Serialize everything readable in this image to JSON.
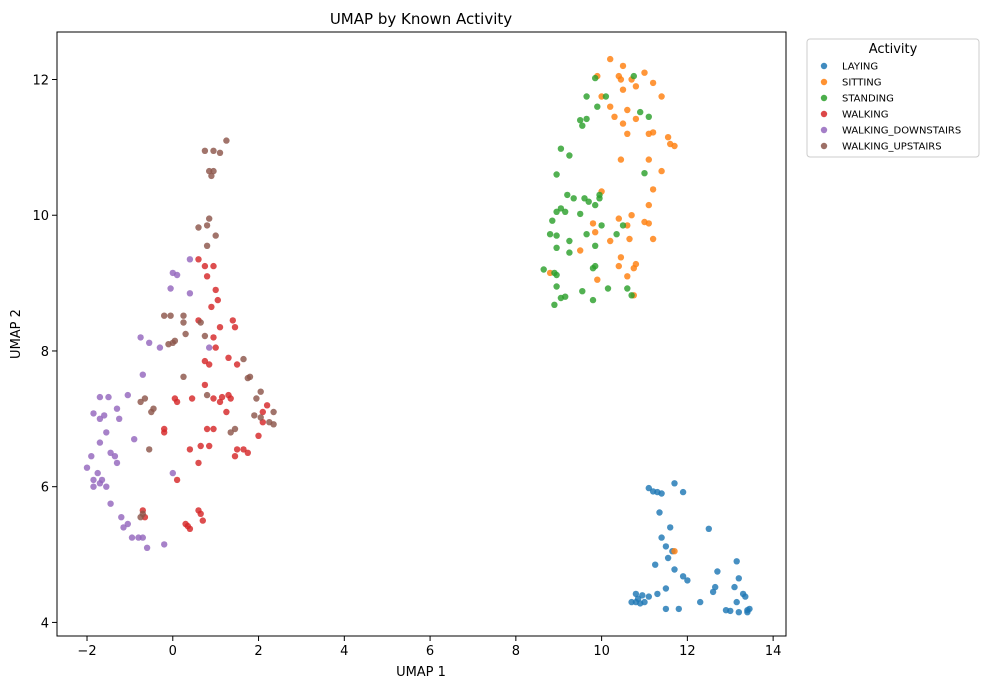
{
  "chart_data": {
    "type": "scatter",
    "title": "UMAP by Known Activity",
    "xlabel": "UMAP 1",
    "ylabel": "UMAP 2",
    "xlim": [
      -2.7,
      14.3
    ],
    "ylim": [
      3.8,
      12.7
    ],
    "xticks": [
      -2,
      0,
      2,
      4,
      6,
      8,
      10,
      12,
      14
    ],
    "yticks": [
      4,
      6,
      8,
      10,
      12
    ],
    "legend": {
      "title": "Activity",
      "placement": "outside-right-top"
    },
    "series": [
      {
        "name": "LAYING",
        "color": "#1f77b4",
        "points": [
          [
            11.1,
            5.98
          ],
          [
            11.2,
            5.93
          ],
          [
            11.3,
            5.92
          ],
          [
            11.4,
            5.9
          ],
          [
            11.7,
            6.05
          ],
          [
            11.9,
            5.92
          ],
          [
            11.35,
            5.62
          ],
          [
            11.4,
            5.25
          ],
          [
            11.6,
            5.4
          ],
          [
            11.5,
            5.12
          ],
          [
            11.65,
            5.05
          ],
          [
            11.55,
            4.95
          ],
          [
            11.25,
            4.85
          ],
          [
            11.7,
            4.78
          ],
          [
            11.9,
            4.68
          ],
          [
            12.0,
            4.62
          ],
          [
            11.5,
            4.5
          ],
          [
            11.3,
            4.42
          ],
          [
            11.1,
            4.38
          ],
          [
            10.8,
            4.42
          ],
          [
            10.85,
            4.35
          ],
          [
            10.95,
            4.4
          ],
          [
            10.7,
            4.3
          ],
          [
            10.8,
            4.3
          ],
          [
            10.9,
            4.28
          ],
          [
            11.0,
            4.3
          ],
          [
            11.5,
            4.2
          ],
          [
            11.8,
            4.2
          ],
          [
            12.3,
            4.3
          ],
          [
            12.5,
            5.38
          ],
          [
            12.7,
            4.75
          ],
          [
            12.65,
            4.52
          ],
          [
            12.6,
            4.45
          ],
          [
            13.15,
            4.9
          ],
          [
            13.2,
            4.65
          ],
          [
            13.1,
            4.52
          ],
          [
            13.3,
            4.42
          ],
          [
            13.35,
            4.38
          ],
          [
            13.15,
            4.3
          ],
          [
            12.9,
            4.18
          ],
          [
            13.0,
            4.17
          ],
          [
            13.2,
            4.15
          ],
          [
            13.4,
            4.15
          ],
          [
            13.45,
            4.2
          ],
          [
            13.4,
            4.18
          ]
        ]
      },
      {
        "name": "SITTING",
        "color": "#ff7f0e",
        "points": [
          [
            10.2,
            12.3
          ],
          [
            10.5,
            12.2
          ],
          [
            9.9,
            12.05
          ],
          [
            10.4,
            12.05
          ],
          [
            10.45,
            12.0
          ],
          [
            10.7,
            12.0
          ],
          [
            11.0,
            12.1
          ],
          [
            11.2,
            11.95
          ],
          [
            11.4,
            11.75
          ],
          [
            10.8,
            11.9
          ],
          [
            10.5,
            11.85
          ],
          [
            10.0,
            11.75
          ],
          [
            10.2,
            11.6
          ],
          [
            10.6,
            11.55
          ],
          [
            10.3,
            11.45
          ],
          [
            10.8,
            11.42
          ],
          [
            10.5,
            11.35
          ],
          [
            10.6,
            11.2
          ],
          [
            11.1,
            11.2
          ],
          [
            11.2,
            11.22
          ],
          [
            11.55,
            11.15
          ],
          [
            11.6,
            11.05
          ],
          [
            11.7,
            11.02
          ],
          [
            10.45,
            10.82
          ],
          [
            11.1,
            10.82
          ],
          [
            11.4,
            10.65
          ],
          [
            11.2,
            10.38
          ],
          [
            10.0,
            10.35
          ],
          [
            11.1,
            10.15
          ],
          [
            10.7,
            10.0
          ],
          [
            10.4,
            9.95
          ],
          [
            11.0,
            9.9
          ],
          [
            11.1,
            9.88
          ],
          [
            9.8,
            9.88
          ],
          [
            9.85,
            9.75
          ],
          [
            10.6,
            9.85
          ],
          [
            10.65,
            9.65
          ],
          [
            11.2,
            9.65
          ],
          [
            10.2,
            9.62
          ],
          [
            9.5,
            9.48
          ],
          [
            10.45,
            9.38
          ],
          [
            10.4,
            9.25
          ],
          [
            10.8,
            9.28
          ],
          [
            10.75,
            9.22
          ],
          [
            10.6,
            9.1
          ],
          [
            9.9,
            9.05
          ],
          [
            8.8,
            9.15
          ],
          [
            10.75,
            8.82
          ],
          [
            11.7,
            5.05
          ]
        ]
      },
      {
        "name": "STANDING",
        "color": "#2ca02c",
        "points": [
          [
            9.85,
            12.02
          ],
          [
            10.75,
            12.05
          ],
          [
            9.65,
            11.75
          ],
          [
            10.1,
            11.75
          ],
          [
            9.9,
            11.6
          ],
          [
            9.65,
            11.42
          ],
          [
            9.5,
            11.4
          ],
          [
            9.55,
            11.32
          ],
          [
            10.9,
            11.52
          ],
          [
            11.1,
            11.45
          ],
          [
            9.05,
            10.98
          ],
          [
            9.25,
            10.88
          ],
          [
            8.95,
            10.6
          ],
          [
            11.0,
            10.62
          ],
          [
            9.2,
            10.3
          ],
          [
            9.35,
            10.25
          ],
          [
            9.6,
            10.25
          ],
          [
            9.95,
            10.25
          ],
          [
            9.95,
            10.3
          ],
          [
            9.7,
            10.2
          ],
          [
            9.85,
            10.15
          ],
          [
            9.05,
            10.1
          ],
          [
            8.95,
            10.05
          ],
          [
            9.15,
            10.05
          ],
          [
            9.5,
            10.02
          ],
          [
            8.85,
            9.92
          ],
          [
            10.0,
            9.85
          ],
          [
            10.5,
            9.85
          ],
          [
            9.65,
            9.72
          ],
          [
            9.25,
            9.62
          ],
          [
            8.8,
            9.72
          ],
          [
            8.95,
            9.7
          ],
          [
            10.35,
            9.72
          ],
          [
            8.95,
            9.52
          ],
          [
            9.85,
            9.55
          ],
          [
            9.25,
            9.45
          ],
          [
            8.65,
            9.2
          ],
          [
            8.9,
            9.15
          ],
          [
            8.95,
            9.12
          ],
          [
            9.8,
            9.22
          ],
          [
            9.85,
            9.25
          ],
          [
            8.95,
            8.95
          ],
          [
            10.15,
            8.92
          ],
          [
            10.6,
            8.92
          ],
          [
            9.55,
            8.88
          ],
          [
            9.05,
            8.78
          ],
          [
            9.15,
            8.8
          ],
          [
            8.9,
            8.68
          ],
          [
            9.8,
            8.75
          ],
          [
            10.7,
            8.82
          ]
        ]
      },
      {
        "name": "WALKING",
        "color": "#d62728",
        "points": [
          [
            0.6,
            9.35
          ],
          [
            0.75,
            9.25
          ],
          [
            0.95,
            9.25
          ],
          [
            0.8,
            9.1
          ],
          [
            1.0,
            8.9
          ],
          [
            1.05,
            8.75
          ],
          [
            0.9,
            8.65
          ],
          [
            0.6,
            8.45
          ],
          [
            1.1,
            8.35
          ],
          [
            1.4,
            8.45
          ],
          [
            1.45,
            8.35
          ],
          [
            0.95,
            8.2
          ],
          [
            1.0,
            8.05
          ],
          [
            0.75,
            7.85
          ],
          [
            0.85,
            7.8
          ],
          [
            1.3,
            7.9
          ],
          [
            1.5,
            7.8
          ],
          [
            0.75,
            7.5
          ],
          [
            0.95,
            7.3
          ],
          [
            1.15,
            7.32
          ],
          [
            1.3,
            7.35
          ],
          [
            1.1,
            7.25
          ],
          [
            1.35,
            7.3
          ],
          [
            2.2,
            7.2
          ],
          [
            2.1,
            7.1
          ],
          [
            0.45,
            7.3
          ],
          [
            0.1,
            7.25
          ],
          [
            0.05,
            7.3
          ],
          [
            -0.2,
            6.85
          ],
          [
            -0.2,
            6.8
          ],
          [
            0.95,
            6.85
          ],
          [
            0.8,
            6.85
          ],
          [
            0.85,
            6.6
          ],
          [
            0.65,
            6.6
          ],
          [
            0.4,
            6.55
          ],
          [
            1.5,
            6.55
          ],
          [
            1.65,
            6.55
          ],
          [
            1.75,
            6.5
          ],
          [
            1.45,
            6.45
          ],
          [
            2.1,
            6.95
          ],
          [
            2.0,
            6.75
          ],
          [
            0.6,
            6.35
          ],
          [
            0.1,
            6.1
          ],
          [
            -0.7,
            5.65
          ],
          [
            -0.65,
            5.55
          ],
          [
            0.6,
            5.65
          ],
          [
            0.65,
            5.6
          ],
          [
            0.7,
            5.5
          ],
          [
            0.3,
            5.45
          ],
          [
            0.35,
            5.42
          ],
          [
            0.4,
            5.38
          ],
          [
            1.25,
            7.1
          ]
        ]
      },
      {
        "name": "WALKING_DOWNSTAIRS",
        "color": "#9467bd",
        "points": [
          [
            0.4,
            9.35
          ],
          [
            0.0,
            9.15
          ],
          [
            0.1,
            9.12
          ],
          [
            -0.05,
            8.92
          ],
          [
            0.4,
            8.85
          ],
          [
            -0.75,
            8.2
          ],
          [
            -0.55,
            8.12
          ],
          [
            -0.3,
            8.05
          ],
          [
            -1.05,
            7.35
          ],
          [
            -1.7,
            7.32
          ],
          [
            -1.5,
            7.32
          ],
          [
            -1.3,
            7.15
          ],
          [
            -1.85,
            7.08
          ],
          [
            -1.7,
            7.0
          ],
          [
            -1.6,
            7.05
          ],
          [
            -1.25,
            7.0
          ],
          [
            -1.55,
            6.8
          ],
          [
            -1.9,
            6.45
          ],
          [
            -1.45,
            6.5
          ],
          [
            -1.35,
            6.45
          ],
          [
            -1.3,
            6.35
          ],
          [
            -1.7,
            6.65
          ],
          [
            -0.9,
            6.7
          ],
          [
            -2.0,
            6.28
          ],
          [
            -1.85,
            6.1
          ],
          [
            -1.75,
            6.2
          ],
          [
            -1.85,
            6.0
          ],
          [
            -1.7,
            6.05
          ],
          [
            -1.55,
            6.0
          ],
          [
            -1.65,
            6.1
          ],
          [
            -1.45,
            5.75
          ],
          [
            -1.2,
            5.55
          ],
          [
            -1.15,
            5.4
          ],
          [
            -1.05,
            5.45
          ],
          [
            -0.95,
            5.25
          ],
          [
            -0.8,
            5.25
          ],
          [
            -0.7,
            5.25
          ],
          [
            -0.6,
            5.1
          ],
          [
            -0.2,
            5.15
          ],
          [
            0.0,
            6.2
          ],
          [
            0.85,
            8.05
          ],
          [
            -0.7,
            7.65
          ]
        ]
      },
      {
        "name": "WALKING_UPSTAIRS",
        "color": "#8c564b",
        "points": [
          [
            1.25,
            11.1
          ],
          [
            0.75,
            10.95
          ],
          [
            0.95,
            10.95
          ],
          [
            1.1,
            10.92
          ],
          [
            0.85,
            10.65
          ],
          [
            0.95,
            10.65
          ],
          [
            0.9,
            10.58
          ],
          [
            0.85,
            9.95
          ],
          [
            0.8,
            9.85
          ],
          [
            0.6,
            9.82
          ],
          [
            1.0,
            9.7
          ],
          [
            0.8,
            9.55
          ],
          [
            -0.2,
            8.52
          ],
          [
            -0.05,
            8.52
          ],
          [
            0.25,
            8.52
          ],
          [
            0.25,
            8.42
          ],
          [
            0.65,
            8.42
          ],
          [
            -0.1,
            8.1
          ],
          [
            0.0,
            8.12
          ],
          [
            0.05,
            8.15
          ],
          [
            0.3,
            8.25
          ],
          [
            0.75,
            8.22
          ],
          [
            1.65,
            7.88
          ],
          [
            1.75,
            7.6
          ],
          [
            1.8,
            7.62
          ],
          [
            0.25,
            7.62
          ],
          [
            2.05,
            7.4
          ],
          [
            1.95,
            7.3
          ],
          [
            0.8,
            7.35
          ],
          [
            -0.65,
            7.3
          ],
          [
            -0.75,
            7.25
          ],
          [
            -0.45,
            7.15
          ],
          [
            -0.5,
            7.1
          ],
          [
            1.9,
            7.05
          ],
          [
            2.05,
            7.02
          ],
          [
            2.35,
            7.1
          ],
          [
            2.25,
            6.95
          ],
          [
            2.35,
            6.92
          ],
          [
            1.45,
            6.85
          ],
          [
            1.35,
            6.8
          ],
          [
            -0.55,
            6.55
          ],
          [
            -0.75,
            5.55
          ],
          [
            -0.7,
            5.6
          ]
        ]
      }
    ]
  }
}
